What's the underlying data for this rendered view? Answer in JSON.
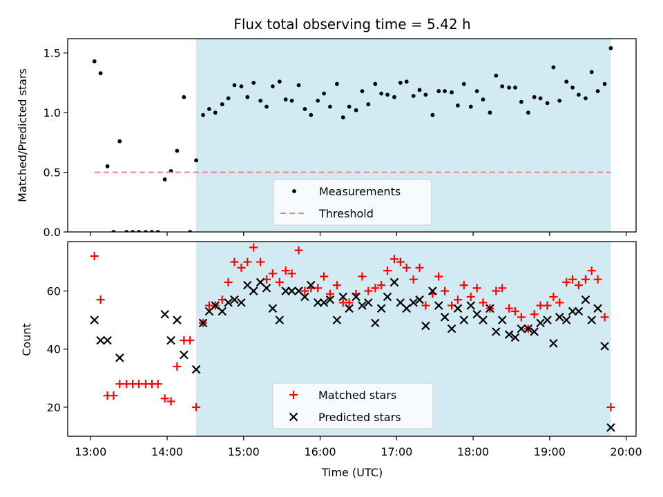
{
  "figure_title": "Flux total observing time = 5.42 h",
  "shared_x": {
    "label": "Time (UTC)",
    "unit": "hours since 00:00 UTC",
    "range": [
      12.7,
      20.13
    ],
    "ticks": [
      13,
      14,
      15,
      16,
      17,
      18,
      19,
      20
    ],
    "tick_labels": [
      "13:00",
      "14:00",
      "15:00",
      "16:00",
      "17:00",
      "18:00",
      "19:00",
      "20:00"
    ]
  },
  "shaded_interval": {
    "start": 14.38,
    "end": 19.8,
    "color": "#add8e6"
  },
  "chart_data": [
    {
      "type": "scatter",
      "ylabel": "Matched/Predicted stars",
      "ylim": [
        0,
        1.62
      ],
      "yticks": [
        0.0,
        0.5,
        1.0,
        1.5
      ],
      "ytick_labels": [
        "0.0",
        "0.5",
        "1.0",
        "1.5"
      ],
      "legend": {
        "placement": "bottom-center",
        "entries": [
          "Measurements",
          "Threshold"
        ]
      },
      "series": [
        {
          "name": "Measurements",
          "style": "dot",
          "color": "#000000",
          "points": [
            [
              13.05,
              1.43
            ],
            [
              13.13,
              1.33
            ],
            [
              13.22,
              0.55
            ],
            [
              13.3,
              0.0
            ],
            [
              13.38,
              0.76
            ],
            [
              13.47,
              0.0
            ],
            [
              13.55,
              0.0
            ],
            [
              13.63,
              0.0
            ],
            [
              13.72,
              0.0
            ],
            [
              13.8,
              0.0
            ],
            [
              13.88,
              0.0
            ],
            [
              13.97,
              0.44
            ],
            [
              14.05,
              0.51
            ],
            [
              14.13,
              0.68
            ],
            [
              14.22,
              1.13
            ],
            [
              14.3,
              0.0
            ],
            [
              14.38,
              0.6
            ],
            [
              14.47,
              0.98
            ],
            [
              14.55,
              1.03
            ],
            [
              14.63,
              1.0
            ],
            [
              14.72,
              1.07
            ],
            [
              14.8,
              1.12
            ],
            [
              14.88,
              1.23
            ],
            [
              14.97,
              1.22
            ],
            [
              15.05,
              1.13
            ],
            [
              15.13,
              1.25
            ],
            [
              15.22,
              1.1
            ],
            [
              15.3,
              1.05
            ],
            [
              15.38,
              1.22
            ],
            [
              15.47,
              1.26
            ],
            [
              15.55,
              1.11
            ],
            [
              15.63,
              1.1
            ],
            [
              15.72,
              1.23
            ],
            [
              15.8,
              1.03
            ],
            [
              15.88,
              0.98
            ],
            [
              15.97,
              1.1
            ],
            [
              16.05,
              1.16
            ],
            [
              16.13,
              1.05
            ],
            [
              16.22,
              1.24
            ],
            [
              16.3,
              0.96
            ],
            [
              16.38,
              1.05
            ],
            [
              16.47,
              1.02
            ],
            [
              16.55,
              1.18
            ],
            [
              16.63,
              1.07
            ],
            [
              16.72,
              1.24
            ],
            [
              16.8,
              1.16
            ],
            [
              16.88,
              1.15
            ],
            [
              16.97,
              1.13
            ],
            [
              17.05,
              1.25
            ],
            [
              17.13,
              1.26
            ],
            [
              17.22,
              1.14
            ],
            [
              17.3,
              1.19
            ],
            [
              17.38,
              1.15
            ],
            [
              17.47,
              0.98
            ],
            [
              17.55,
              1.18
            ],
            [
              17.63,
              1.18
            ],
            [
              17.72,
              1.17
            ],
            [
              17.8,
              1.06
            ],
            [
              17.88,
              1.24
            ],
            [
              17.97,
              1.05
            ],
            [
              18.05,
              1.18
            ],
            [
              18.13,
              1.11
            ],
            [
              18.22,
              1.0
            ],
            [
              18.3,
              1.31
            ],
            [
              18.38,
              1.22
            ],
            [
              18.47,
              1.21
            ],
            [
              18.55,
              1.21
            ],
            [
              18.63,
              1.09
            ],
            [
              18.72,
              1.0
            ],
            [
              18.8,
              1.13
            ],
            [
              18.88,
              1.12
            ],
            [
              18.97,
              1.08
            ],
            [
              19.05,
              1.38
            ],
            [
              19.13,
              1.1
            ],
            [
              19.22,
              1.26
            ],
            [
              19.3,
              1.21
            ],
            [
              19.38,
              1.15
            ],
            [
              19.47,
              1.12
            ],
            [
              19.55,
              1.34
            ],
            [
              19.63,
              1.18
            ],
            [
              19.72,
              1.24
            ],
            [
              19.8,
              1.54
            ]
          ]
        },
        {
          "name": "Threshold",
          "style": "dashed-line",
          "color": "#f08080",
          "points": [
            [
              13.05,
              0.5
            ],
            [
              19.8,
              0.5
            ]
          ]
        }
      ]
    },
    {
      "type": "scatter",
      "xlabel": "Time (UTC)",
      "ylabel": "Count",
      "ylim": [
        10,
        77
      ],
      "yticks": [
        20,
        40,
        60
      ],
      "ytick_labels": [
        "20",
        "40",
        "60"
      ],
      "legend": {
        "placement": "bottom-center",
        "entries": [
          "Matched stars",
          "Predicted stars"
        ]
      },
      "series": [
        {
          "name": "Matched stars",
          "marker": "plus",
          "color": "#ff0000",
          "points": [
            [
              13.05,
              72
            ],
            [
              13.13,
              57
            ],
            [
              13.22,
              24
            ],
            [
              13.3,
              24
            ],
            [
              13.38,
              28
            ],
            [
              13.47,
              28
            ],
            [
              13.55,
              28
            ],
            [
              13.63,
              28
            ],
            [
              13.72,
              28
            ],
            [
              13.8,
              28
            ],
            [
              13.88,
              28
            ],
            [
              13.97,
              23
            ],
            [
              14.05,
              22
            ],
            [
              14.13,
              34
            ],
            [
              14.22,
              43
            ],
            [
              14.3,
              43
            ],
            [
              14.38,
              20
            ],
            [
              14.47,
              49
            ],
            [
              14.55,
              55
            ],
            [
              14.63,
              55
            ],
            [
              14.72,
              57
            ],
            [
              14.8,
              63
            ],
            [
              14.88,
              70
            ],
            [
              14.97,
              68
            ],
            [
              15.05,
              70
            ],
            [
              15.13,
              75
            ],
            [
              15.22,
              70
            ],
            [
              15.3,
              64
            ],
            [
              15.38,
              66
            ],
            [
              15.47,
              63
            ],
            [
              15.55,
              67
            ],
            [
              15.63,
              66
            ],
            [
              15.72,
              74
            ],
            [
              15.8,
              60
            ],
            [
              15.88,
              61
            ],
            [
              15.97,
              61
            ],
            [
              16.05,
              65
            ],
            [
              16.13,
              59
            ],
            [
              16.22,
              62
            ],
            [
              16.3,
              56
            ],
            [
              16.38,
              56
            ],
            [
              16.47,
              59
            ],
            [
              16.55,
              65
            ],
            [
              16.63,
              60
            ],
            [
              16.72,
              61
            ],
            [
              16.8,
              62
            ],
            [
              16.88,
              67
            ],
            [
              16.97,
              71
            ],
            [
              17.05,
              70
            ],
            [
              17.13,
              68
            ],
            [
              17.22,
              64
            ],
            [
              17.3,
              68
            ],
            [
              17.38,
              55
            ],
            [
              17.47,
              59
            ],
            [
              17.55,
              65
            ],
            [
              17.63,
              60
            ],
            [
              17.72,
              55
            ],
            [
              17.8,
              57
            ],
            [
              17.88,
              62
            ],
            [
              17.97,
              58
            ],
            [
              18.05,
              61
            ],
            [
              18.13,
              56
            ],
            [
              18.22,
              54
            ],
            [
              18.3,
              60
            ],
            [
              18.38,
              61
            ],
            [
              18.47,
              54
            ],
            [
              18.55,
              53
            ],
            [
              18.63,
              51
            ],
            [
              18.72,
              47
            ],
            [
              18.8,
              52
            ],
            [
              18.88,
              55
            ],
            [
              18.97,
              55
            ],
            [
              19.05,
              58
            ],
            [
              19.13,
              56
            ],
            [
              19.22,
              63
            ],
            [
              19.3,
              64
            ],
            [
              19.38,
              62
            ],
            [
              19.47,
              64
            ],
            [
              19.55,
              67
            ],
            [
              19.63,
              64
            ],
            [
              19.72,
              51
            ],
            [
              19.8,
              20
            ]
          ]
        },
        {
          "name": "Predicted stars",
          "marker": "x",
          "color": "#000000",
          "points": [
            [
              13.05,
              50
            ],
            [
              13.13,
              43
            ],
            [
              13.22,
              43
            ],
            [
              13.38,
              37
            ],
            [
              13.97,
              52
            ],
            [
              14.05,
              43
            ],
            [
              14.13,
              50
            ],
            [
              14.22,
              38
            ],
            [
              14.38,
              33
            ],
            [
              14.47,
              49
            ],
            [
              14.55,
              53
            ],
            [
              14.63,
              55
            ],
            [
              14.72,
              53
            ],
            [
              14.8,
              56
            ],
            [
              14.88,
              57
            ],
            [
              14.97,
              56
            ],
            [
              15.05,
              62
            ],
            [
              15.13,
              60
            ],
            [
              15.22,
              63
            ],
            [
              15.3,
              61
            ],
            [
              15.38,
              54
            ],
            [
              15.47,
              50
            ],
            [
              15.55,
              60
            ],
            [
              15.63,
              60
            ],
            [
              15.72,
              60
            ],
            [
              15.8,
              58
            ],
            [
              15.88,
              62
            ],
            [
              15.97,
              56
            ],
            [
              16.05,
              56
            ],
            [
              16.13,
              57
            ],
            [
              16.22,
              50
            ],
            [
              16.3,
              58
            ],
            [
              16.38,
              54
            ],
            [
              16.47,
              58
            ],
            [
              16.55,
              55
            ],
            [
              16.63,
              56
            ],
            [
              16.72,
              49
            ],
            [
              16.8,
              54
            ],
            [
              16.88,
              58
            ],
            [
              16.97,
              63
            ],
            [
              17.05,
              56
            ],
            [
              17.13,
              54
            ],
            [
              17.22,
              56
            ],
            [
              17.3,
              57
            ],
            [
              17.38,
              48
            ],
            [
              17.47,
              60
            ],
            [
              17.55,
              55
            ],
            [
              17.63,
              51
            ],
            [
              17.72,
              47
            ],
            [
              17.8,
              54
            ],
            [
              17.88,
              50
            ],
            [
              17.97,
              55
            ],
            [
              18.05,
              52
            ],
            [
              18.13,
              50
            ],
            [
              18.22,
              54
            ],
            [
              18.3,
              46
            ],
            [
              18.38,
              50
            ],
            [
              18.47,
              45
            ],
            [
              18.55,
              44
            ],
            [
              18.63,
              47
            ],
            [
              18.72,
              47
            ],
            [
              18.8,
              46
            ],
            [
              18.88,
              49
            ],
            [
              18.97,
              50
            ],
            [
              19.05,
              42
            ],
            [
              19.13,
              51
            ],
            [
              19.22,
              50
            ],
            [
              19.3,
              53
            ],
            [
              19.38,
              53
            ],
            [
              19.47,
              57
            ],
            [
              19.55,
              50
            ],
            [
              19.63,
              54
            ],
            [
              19.72,
              41
            ],
            [
              19.8,
              13
            ]
          ]
        }
      ]
    }
  ]
}
